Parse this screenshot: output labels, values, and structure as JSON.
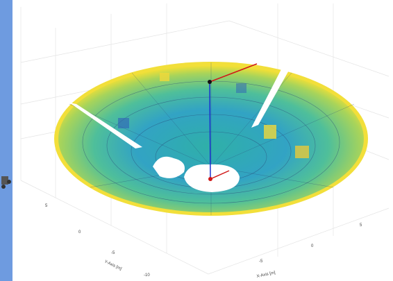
{
  "axes": {
    "y_label": "Y-Axis [m]",
    "x_label": "X-Axis [m]",
    "y_ticks": [
      "5",
      "0",
      "-5",
      "-10"
    ],
    "x_ticks": [
      "5",
      "0",
      "-5"
    ]
  }
}
